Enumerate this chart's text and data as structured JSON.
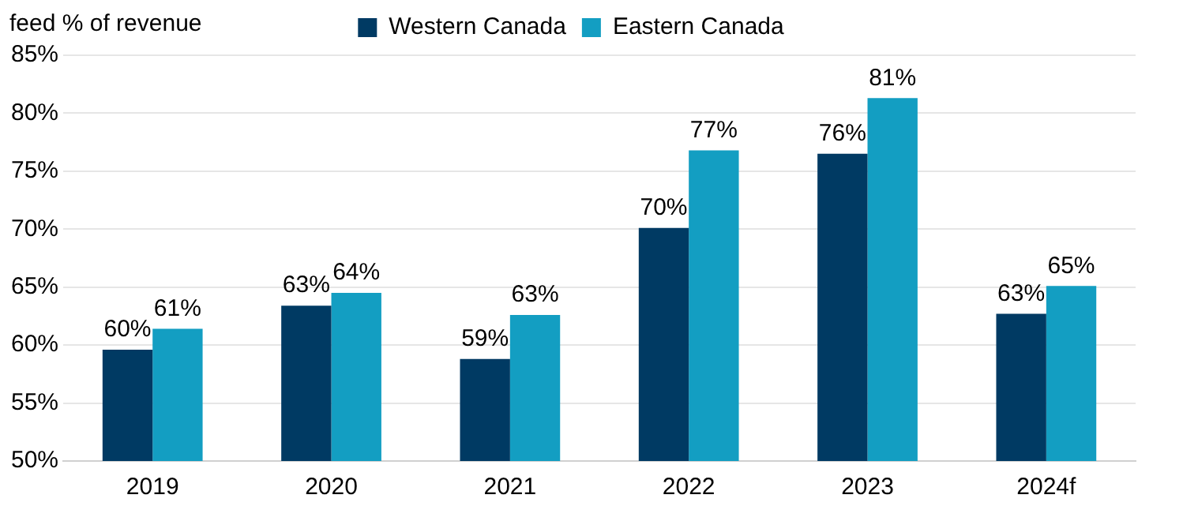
{
  "chart_data": {
    "type": "bar",
    "ylabel": "feed % of revenue",
    "categories": [
      "2019",
      "2020",
      "2021",
      "2022",
      "2023",
      "2024f"
    ],
    "series": [
      {
        "name": "Western Canada",
        "color": "#003a63",
        "values": [
          59.6,
          63.4,
          58.8,
          70.1,
          76.5,
          62.7
        ],
        "value_labels": [
          "60%",
          "63%",
          "59%",
          "70%",
          "76%",
          "63%"
        ]
      },
      {
        "name": "Eastern Canada",
        "color": "#139ec2",
        "values": [
          61.4,
          64.5,
          62.6,
          76.8,
          81.3,
          65.1
        ],
        "value_labels": [
          "61%",
          "64%",
          "63%",
          "77%",
          "81%",
          "65%"
        ]
      }
    ],
    "ylim": [
      50,
      85
    ],
    "yticks": [
      {
        "value": 50,
        "label": "50%"
      },
      {
        "value": 55,
        "label": "55%"
      },
      {
        "value": 60,
        "label": "60%"
      },
      {
        "value": 65,
        "label": "65%"
      },
      {
        "value": 70,
        "label": "70%"
      },
      {
        "value": 75,
        "label": "75%"
      },
      {
        "value": 80,
        "label": "80%"
      },
      {
        "value": 85,
        "label": "85%"
      }
    ],
    "grid": "y",
    "legend": "top"
  }
}
